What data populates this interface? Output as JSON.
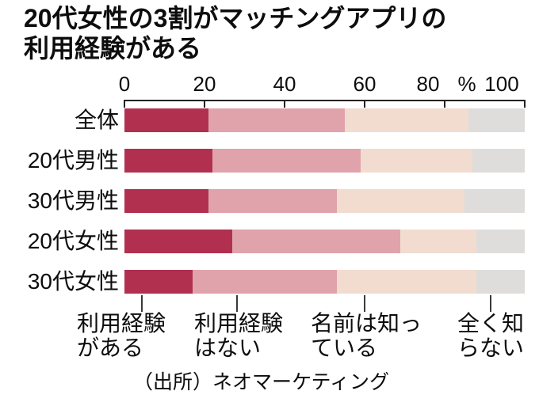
{
  "title": {
    "line1": "20代女性の3割がマッチングアプリの",
    "line2": "利用経験がある"
  },
  "chart_data": {
    "type": "bar",
    "variant": "horizontal-stacked",
    "unit": "%",
    "xlim": [
      0,
      100
    ],
    "x_ticks": [
      0,
      20,
      40,
      60,
      80,
      100
    ],
    "grid": false,
    "legend_position": "bottom",
    "categories": [
      "全体",
      "20代男性",
      "30代男性",
      "20代女性",
      "30代女性"
    ],
    "series": [
      {
        "name": "利用経験がある",
        "color": "#b13050",
        "values": [
          21,
          22,
          21,
          27,
          17
        ]
      },
      {
        "name": "利用経験はない",
        "color": "#e0a3ab",
        "values": [
          34,
          37,
          32,
          42,
          36
        ]
      },
      {
        "name": "名前は知っている",
        "color": "#f2dcd0",
        "values": [
          31,
          28,
          32,
          19,
          35
        ]
      },
      {
        "name": "全く知らない",
        "color": "#dfdddb",
        "values": [
          14,
          13,
          15,
          12,
          12
        ]
      }
    ]
  },
  "axis": {
    "tick_labels": [
      "0",
      "20",
      "40",
      "60",
      "80"
    ],
    "unit_label": "%",
    "max_label": "100"
  },
  "legend": {
    "items": [
      {
        "line1": "利用経験",
        "line2": "がある"
      },
      {
        "line1": "利用経験",
        "line2": "はない"
      },
      {
        "line1": "名前は知っ",
        "line2": "ている"
      },
      {
        "line1": "全く知",
        "line2": "らない"
      }
    ]
  },
  "source": "（出所）ネオマーケティング",
  "colors": {
    "bar_series": [
      "#b13050",
      "#e0a3ab",
      "#f2dcd0",
      "#dfdddb"
    ],
    "axis": "#222222",
    "text": "#0d0d0d",
    "background": "#ffffff"
  }
}
